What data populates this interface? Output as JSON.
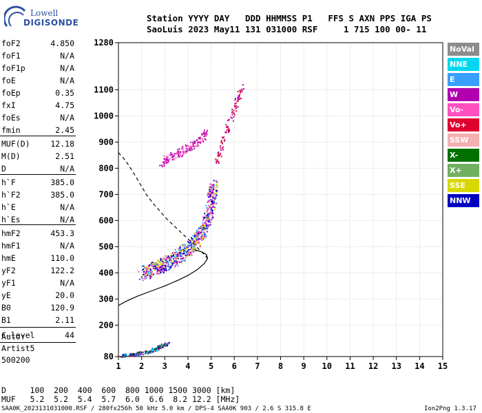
{
  "logo": {
    "line1": "Lowell",
    "line2": "DIGISONDE"
  },
  "header": {
    "labels": "Station YYYY DAY   DDD HHMMSS P1   FFS S AXN PPS IGA PS",
    "values": "SaoLuis 2023 May11 131 031000 RSF     1 715 100 00- 11"
  },
  "params": [
    {
      "label": "foF2",
      "value": "4.850"
    },
    {
      "label": "foF1",
      "value": "N/A"
    },
    {
      "label": "foF1p",
      "value": "N/A"
    },
    {
      "label": "foE",
      "value": "N/A"
    },
    {
      "label": "foEp",
      "value": "0.35"
    },
    {
      "label": "fxI",
      "value": "4.75"
    },
    {
      "label": "foEs",
      "value": "N/A"
    },
    {
      "label": "fmin",
      "value": "2.45"
    },
    {
      "label": "MUF(D)",
      "value": "12.18"
    },
    {
      "label": "M(D)",
      "value": "2.51"
    },
    {
      "label": "D",
      "value": "N/A"
    },
    {
      "label": "h`F",
      "value": "385.0"
    },
    {
      "label": "h`F2",
      "value": "385.0"
    },
    {
      "label": "h`E",
      "value": "N/A"
    },
    {
      "label": "h`Es",
      "value": "N/A"
    },
    {
      "label": "hmF2",
      "value": "453.3"
    },
    {
      "label": "hmF1",
      "value": "N/A"
    },
    {
      "label": "hmE",
      "value": "110.0"
    },
    {
      "label": "yF2",
      "value": "122.2"
    },
    {
      "label": "yF1",
      "value": "N/A"
    },
    {
      "label": "yE",
      "value": "20.0"
    },
    {
      "label": "B0",
      "value": "120.9"
    },
    {
      "label": "B1",
      "value": "2.11"
    },
    {
      "label": "C-level",
      "value": "44"
    }
  ],
  "autoscaling": [
    "Auto:",
    "Artist5",
    "500200"
  ],
  "legend": [
    {
      "label": "NoVal",
      "color": "#8c8c8c"
    },
    {
      "label": "NNE",
      "color": "#00d8f0"
    },
    {
      "label": "E",
      "color": "#3aa0ff"
    },
    {
      "label": "W",
      "color": "#b000b0"
    },
    {
      "label": "Vo-",
      "color": "#ff50c0"
    },
    {
      "label": "Vo+",
      "color": "#e00030"
    },
    {
      "label": "SSW",
      "color": "#f4b0b0"
    },
    {
      "label": "X-",
      "color": "#007000"
    },
    {
      "label": "X+",
      "color": "#70b060"
    },
    {
      "label": "SSE",
      "color": "#d8d800"
    },
    {
      "label": "NNW",
      "color": "#0000c0"
    }
  ],
  "footer": {
    "d_line": "D     100  200  400  600  800 1000 1500 3000 [km]",
    "muf_line": "MUF   5.2  5.2  5.4  5.7  6.0  6.6  8.2 12.2 [MHz]",
    "file_line": "SAA0K_2023131031000.RSF / 280fx256h 50 kHz 5.0 km / DPS-4 SAA0K 903 / 2.6 S 315.8 E",
    "version": "Ion2Png 1.3.17"
  },
  "chart_data": {
    "type": "scatter",
    "xlim": [
      1,
      15
    ],
    "ylim": [
      80,
      1280
    ],
    "xticks": [
      1,
      2,
      3,
      4,
      5,
      6,
      7,
      8,
      9,
      10,
      11,
      12,
      13,
      14,
      15
    ],
    "yticks": [
      80,
      200,
      300,
      400,
      500,
      600,
      700,
      800,
      900,
      1000,
      1100,
      1280
    ],
    "grid": true,
    "profile_curve": [
      [
        1.0,
        275
      ],
      [
        1.3,
        290
      ],
      [
        1.8,
        310
      ],
      [
        2.4,
        330
      ],
      [
        3.0,
        350
      ],
      [
        3.6,
        373
      ],
      [
        4.0,
        390
      ],
      [
        4.4,
        412
      ],
      [
        4.7,
        435
      ],
      [
        4.85,
        455
      ],
      [
        4.8,
        470
      ],
      [
        4.6,
        480
      ],
      [
        4.3,
        488
      ]
    ],
    "mufline_curve": [
      [
        1.0,
        860
      ],
      [
        1.3,
        830
      ],
      [
        1.6,
        790
      ],
      [
        1.9,
        745
      ],
      [
        2.2,
        700
      ],
      [
        2.5,
        665
      ],
      [
        2.8,
        635
      ],
      [
        3.1,
        605
      ],
      [
        3.4,
        580
      ],
      [
        3.7,
        555
      ],
      [
        4.0,
        530
      ],
      [
        4.3,
        505
      ],
      [
        4.6,
        480
      ],
      [
        4.85,
        455
      ]
    ],
    "traces": [
      {
        "name": "o-trace lower",
        "x": [
          2.0,
          2.3,
          2.6,
          2.9,
          3.2,
          3.5,
          3.8,
          4.1,
          4.4,
          4.6,
          4.8,
          4.95,
          5.05,
          5.1
        ],
        "y": [
          400,
          410,
          420,
          430,
          445,
          460,
          480,
          500,
          530,
          560,
          600,
          650,
          700,
          740
        ],
        "colors": [
          "#b000b0",
          "#ff50c0",
          "#0000c0",
          "#d8d800",
          "#3aa0ff"
        ]
      },
      {
        "name": "upper echo",
        "x": [
          2.8,
          3.1,
          3.4,
          3.7,
          4.0,
          4.3,
          4.6,
          4.8
        ],
        "y": [
          820,
          840,
          850,
          865,
          880,
          895,
          915,
          940
        ],
        "colors": [
          "#b000b0",
          "#ff50c0"
        ]
      },
      {
        "name": "sporadic low",
        "x": [
          1.1,
          1.4,
          1.7,
          2.0,
          2.3,
          2.6,
          2.9,
          3.1
        ],
        "y": [
          85,
          88,
          90,
          95,
          100,
          110,
          125,
          130
        ],
        "colors": [
          "#0000c0",
          "#00d8f0",
          "#007000",
          "#b000b0"
        ]
      },
      {
        "name": "scattered high",
        "x": [
          5.2,
          5.5,
          5.8,
          6.1,
          6.3
        ],
        "y": [
          820,
          900,
          980,
          1060,
          1110
        ],
        "colors": [
          "#b000b0",
          "#e00030"
        ]
      }
    ]
  }
}
